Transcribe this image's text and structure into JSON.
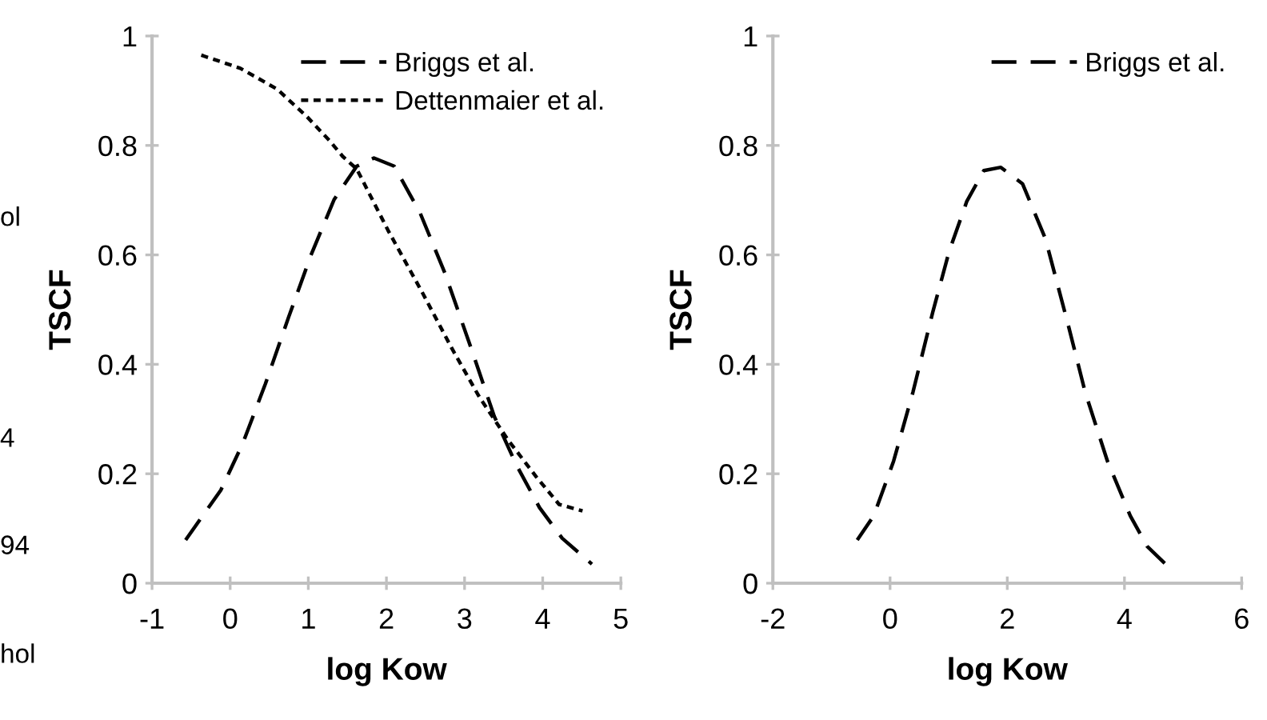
{
  "chart_data": [
    {
      "type": "line",
      "xlabel": "log Kow",
      "ylabel": "TSCF",
      "xlim": [
        -1,
        5
      ],
      "xticks": [
        -1,
        0,
        1,
        2,
        3,
        4,
        5
      ],
      "ylim": [
        0,
        1
      ],
      "yticks": [
        0,
        0.2,
        0.4,
        0.6,
        0.8,
        1
      ],
      "grid": false,
      "legend": "top right",
      "annotations": [
        "ol",
        "4",
        "94",
        "hol"
      ],
      "series": [
        {
          "name": "Briggs et al.",
          "color": "#000000",
          "line_style": "dashed",
          "x": [
            -0.57,
            -0.12,
            0.16,
            0.45,
            0.75,
            1.03,
            1.33,
            1.62,
            1.84,
            2.1,
            2.43,
            2.75,
            3.08,
            3.38,
            3.66,
            3.96,
            4.25,
            4.63
          ],
          "values": [
            0.079,
            0.17,
            0.255,
            0.364,
            0.487,
            0.598,
            0.701,
            0.762,
            0.777,
            0.762,
            0.677,
            0.566,
            0.431,
            0.305,
            0.217,
            0.138,
            0.082,
            0.035
          ]
        },
        {
          "name": "Dettenmaier et al.",
          "color": "#000000",
          "line_style": "dotted",
          "x": [
            -0.37,
            0.13,
            0.6,
            0.98,
            1.27,
            1.44,
            1.62,
            2.02,
            2.46,
            2.83,
            3.19,
            3.56,
            3.92,
            4.21,
            4.51
          ],
          "values": [
            0.965,
            0.941,
            0.903,
            0.853,
            0.809,
            0.78,
            0.757,
            0.645,
            0.531,
            0.431,
            0.34,
            0.261,
            0.194,
            0.144,
            0.132
          ]
        }
      ]
    },
    {
      "type": "line",
      "xlabel": "log Kow",
      "ylabel": "TSCF",
      "xlim": [
        -2,
        6
      ],
      "xticks": [
        -2,
        0,
        2,
        4,
        6
      ],
      "ylim": [
        0,
        1
      ],
      "yticks": [
        0,
        0.2,
        0.4,
        0.6,
        0.8,
        1
      ],
      "grid": false,
      "legend": "top right",
      "series": [
        {
          "name": "Briggs et al.",
          "color": "#000000",
          "line_style": "dashed",
          "x": [
            -0.56,
            -0.28,
            0.06,
            0.39,
            0.73,
            1.01,
            1.31,
            1.6,
            1.89,
            2.26,
            2.65,
            3.04,
            3.33,
            3.71,
            4.1,
            4.39,
            4.73
          ],
          "values": [
            0.079,
            0.123,
            0.223,
            0.349,
            0.496,
            0.607,
            0.698,
            0.754,
            0.76,
            0.73,
            0.63,
            0.472,
            0.349,
            0.223,
            0.123,
            0.067,
            0.032
          ]
        }
      ]
    }
  ]
}
